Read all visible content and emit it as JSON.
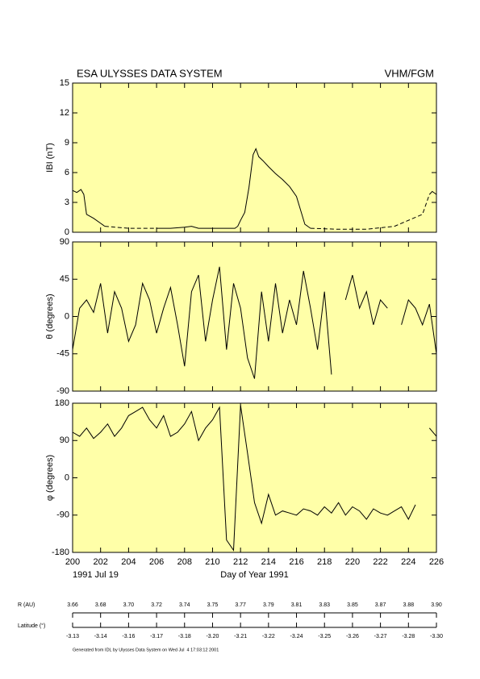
{
  "header": {
    "left": "ESA ULYSSES DATA SYSTEM",
    "right": "VHM/FGM"
  },
  "chart_data": [
    {
      "type": "line",
      "y_label": "IBI (nT)",
      "xlim": [
        200,
        226
      ],
      "xticks": [
        200,
        202,
        204,
        206,
        208,
        210,
        212,
        214,
        216,
        218,
        220,
        222,
        224,
        226
      ],
      "ylim": [
        0,
        15
      ],
      "yticks": [
        0,
        3,
        6,
        9,
        12,
        15
      ],
      "background": "#ffffa8",
      "series": [
        {
          "color": "#000000",
          "dash": false,
          "x": [
            200,
            200.3,
            200.6,
            200.8,
            201,
            201.5,
            202,
            202.3,
            205.9,
            206,
            207,
            208,
            208.5,
            209,
            210,
            211,
            211.6,
            211.8,
            212,
            212.3,
            212.6,
            212.9,
            213.1,
            213.3,
            213.6,
            214,
            214.5,
            215,
            215.5,
            216,
            216.3,
            216.6,
            217,
            225.4,
            225.5,
            225.7,
            226
          ],
          "values": [
            4.2,
            4.0,
            4.3,
            3.8,
            1.8,
            1.4,
            0.9,
            0.6,
            null,
            0.4,
            0.4,
            0.5,
            0.6,
            0.4,
            0.4,
            0.4,
            0.4,
            0.6,
            1.2,
            2.0,
            4.5,
            7.8,
            8.4,
            7.6,
            7.2,
            6.6,
            5.9,
            5.3,
            4.6,
            3.6,
            2.2,
            0.8,
            0.4,
            null,
            3.8,
            4.1,
            3.8
          ]
        },
        {
          "color": "#000000",
          "dash": true,
          "x": [
            202.3,
            204,
            206,
            211.5,
            217,
            219,
            221,
            223,
            225,
            225.5
          ],
          "values": [
            0.6,
            0.4,
            0.4,
            null,
            0.4,
            0.3,
            0.3,
            0.6,
            1.8,
            3.8
          ]
        }
      ]
    },
    {
      "type": "line",
      "y_label": "θ (degrees)",
      "xlim": [
        200,
        226
      ],
      "xticks": [
        200,
        202,
        204,
        206,
        208,
        210,
        212,
        214,
        216,
        218,
        220,
        222,
        224,
        226
      ],
      "ylim": [
        -90,
        90
      ],
      "yticks": [
        -90,
        -45,
        0,
        45,
        90
      ],
      "background": "#ffffa8",
      "series": [
        {
          "color": "#000000",
          "dash": false,
          "x": [
            200,
            200.5,
            201,
            201.5,
            202,
            202.5,
            203,
            203.5,
            204,
            204.5,
            205,
            205.5,
            206,
            206.5,
            207,
            207.5,
            208,
            208.5,
            209,
            209.5,
            210,
            210.5,
            211,
            211.5,
            212,
            212.5,
            213,
            213.5,
            214,
            214.5,
            215,
            215.5,
            216,
            216.5,
            217,
            217.5,
            218,
            218.5,
            219,
            219.5,
            220,
            220.5,
            221,
            221.5,
            222,
            222.5,
            223,
            223.5,
            224,
            224.5,
            225,
            225.5,
            226
          ],
          "values": [
            -40,
            10,
            20,
            5,
            40,
            -20,
            30,
            10,
            -30,
            -10,
            40,
            20,
            -20,
            10,
            35,
            -10,
            -60,
            30,
            50,
            -30,
            20,
            60,
            -40,
            40,
            10,
            -50,
            -75,
            30,
            -30,
            40,
            -20,
            20,
            -10,
            55,
            10,
            -40,
            30,
            -70,
            null,
            20,
            50,
            10,
            30,
            -10,
            20,
            10,
            null,
            -10,
            20,
            10,
            -10,
            15,
            -45
          ]
        }
      ]
    },
    {
      "type": "line",
      "y_label": "φ (degrees)",
      "x_label": "Day of Year 1991",
      "start_date": "1991 Jul 19",
      "xlim": [
        200,
        226
      ],
      "xticks": [
        200,
        202,
        204,
        206,
        208,
        210,
        212,
        214,
        216,
        218,
        220,
        222,
        224,
        226
      ],
      "ylim": [
        -180,
        180
      ],
      "yticks": [
        -180,
        -90,
        0,
        90,
        180
      ],
      "background": "#ffffa8",
      "series": [
        {
          "color": "#000000",
          "dash": false,
          "x": [
            200,
            200.5,
            201,
            201.5,
            202,
            202.5,
            203,
            203.5,
            204,
            204.5,
            205,
            205.5,
            206,
            206.5,
            207,
            207.5,
            208,
            208.5,
            209,
            209.5,
            210,
            210.5,
            211,
            211.5,
            212,
            212.5,
            213,
            213.5,
            214,
            214.5,
            215,
            215.5,
            216,
            216.5,
            217,
            217.5,
            218,
            218.5,
            219,
            219.5,
            220,
            220.5,
            221,
            221.5,
            222,
            222.5,
            223,
            223.5,
            224,
            224.5,
            225,
            225.5,
            226
          ],
          "values": [
            110,
            100,
            120,
            95,
            110,
            130,
            100,
            120,
            150,
            160,
            170,
            140,
            120,
            150,
            100,
            110,
            130,
            160,
            90,
            120,
            140,
            170,
            -150,
            -175,
            175,
            60,
            -60,
            -110,
            -40,
            -90,
            -80,
            -85,
            -90,
            -75,
            -80,
            -90,
            -70,
            -85,
            -60,
            -90,
            -70,
            -80,
            -100,
            -75,
            -85,
            -90,
            -80,
            -70,
            -100,
            -65,
            null,
            120,
            100
          ]
        }
      ]
    }
  ],
  "orbit": {
    "r_label": "R (AU)",
    "r_values": [
      "3.66",
      "3.68",
      "3.70",
      "3.72",
      "3.74",
      "3.75",
      "3.77",
      "3.79",
      "3.81",
      "3.83",
      "3.85",
      "3.87",
      "3.88",
      "3.90"
    ],
    "lat_label": "Latitude (°)",
    "lat_values": [
      "-3.13",
      "-3.14",
      "-3.16",
      "-3.17",
      "-3.18",
      "-3.20",
      "-3.21",
      "-3.22",
      "-3.24",
      "-3.25",
      "-3.26",
      "-3.27",
      "-3.28",
      "-3.30"
    ]
  },
  "footer": "Generated from IDL by Ulysses Data System on Wed Jul  4 17:03:12 2001"
}
